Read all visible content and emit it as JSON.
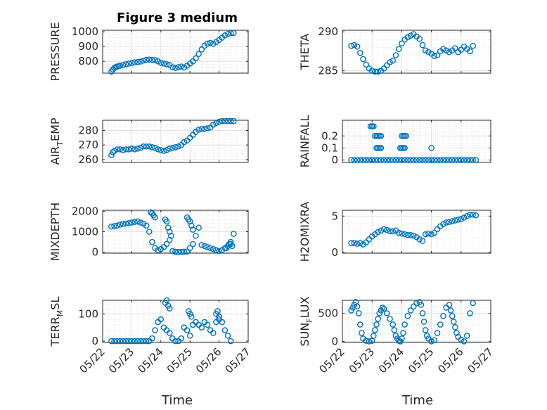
{
  "figure": {
    "title": "Figure 3 medium",
    "xlabel": "Time",
    "marker_color": "#0072BD"
  },
  "chart_data": [
    {
      "type": "scatter",
      "ylabel": "PRESSURE",
      "title": "Figure 3 medium",
      "xlim": [
        "05/22",
        "05/27"
      ],
      "ylim": [
        720,
        1010
      ],
      "yticks": [
        800,
        900,
        1000
      ],
      "xticks": [
        "05/22",
        "05/23",
        "05/24",
        "05/25",
        "05/26",
        "05/27"
      ],
      "grid": true,
      "x": [
        0.3,
        0.35,
        0.4,
        0.45,
        0.5,
        0.55,
        0.6,
        0.7,
        0.8,
        0.9,
        1.0,
        1.1,
        1.2,
        1.3,
        1.4,
        1.5,
        1.6,
        1.7,
        1.8,
        1.9,
        2.0,
        2.1,
        2.2,
        2.3,
        2.4,
        2.5,
        2.6,
        2.7,
        2.8,
        2.9,
        3.0,
        3.1,
        3.2,
        3.3,
        3.4,
        3.5,
        3.6,
        3.7,
        3.8,
        3.9,
        4.0,
        4.1,
        4.2,
        4.3,
        4.4,
        4.5
      ],
      "y": [
        730,
        745,
        755,
        760,
        765,
        768,
        770,
        775,
        780,
        785,
        790,
        793,
        795,
        798,
        805,
        810,
        812,
        810,
        808,
        800,
        790,
        785,
        780,
        775,
        760,
        755,
        760,
        765,
        758,
        770,
        785,
        800,
        820,
        850,
        880,
        905,
        920,
        925,
        918,
        930,
        945,
        960,
        975,
        985,
        990,
        992
      ]
    },
    {
      "type": "scatter",
      "ylabel": "THETA",
      "xlim": [
        "05/22",
        "05/27"
      ],
      "ylim": [
        284.7,
        290.2
      ],
      "yticks": [
        285,
        290
      ],
      "grid": true,
      "x": [
        0.3,
        0.4,
        0.5,
        0.6,
        0.7,
        0.8,
        0.9,
        1.0,
        1.1,
        1.2,
        1.3,
        1.4,
        1.5,
        1.6,
        1.7,
        1.8,
        1.9,
        2.0,
        2.1,
        2.2,
        2.3,
        2.4,
        2.5,
        2.6,
        2.7,
        2.8,
        2.9,
        3.0,
        3.1,
        3.2,
        3.3,
        3.4,
        3.5,
        3.6,
        3.7,
        3.8,
        3.9,
        4.0,
        4.1,
        4.2,
        4.3,
        4.4
      ],
      "y": [
        288.2,
        288.3,
        288.1,
        287.3,
        286.5,
        285.8,
        285.3,
        285.0,
        284.9,
        284.9,
        285.0,
        285.3,
        285.7,
        286.1,
        286.3,
        287.0,
        287.8,
        288.5,
        289.0,
        289.3,
        289.5,
        289.7,
        289.4,
        289.1,
        288.3,
        287.6,
        287.4,
        287.2,
        286.9,
        287.0,
        287.5,
        287.8,
        287.6,
        287.4,
        287.6,
        287.9,
        287.4,
        287.7,
        288.1,
        287.8,
        287.5,
        288.2
      ]
    },
    {
      "type": "scatter",
      "ylabel": "AIR_TEMP",
      "ylabel_parts": [
        "AIR",
        "T",
        "EMP"
      ],
      "xlim": [
        "05/22",
        "05/27"
      ],
      "ylim": [
        258,
        287
      ],
      "yticks": [
        260,
        270,
        280
      ],
      "grid": true,
      "x": [
        0.3,
        0.35,
        0.4,
        0.5,
        0.6,
        0.7,
        0.8,
        0.9,
        1.0,
        1.1,
        1.2,
        1.3,
        1.4,
        1.5,
        1.6,
        1.7,
        1.8,
        1.9,
        2.0,
        2.1,
        2.2,
        2.3,
        2.4,
        2.5,
        2.6,
        2.7,
        2.8,
        2.9,
        3.0,
        3.1,
        3.2,
        3.3,
        3.4,
        3.5,
        3.6,
        3.7,
        3.8,
        3.9,
        4.0,
        4.1,
        4.2,
        4.3,
        4.4,
        4.5
      ],
      "y": [
        263,
        265,
        266,
        267,
        267,
        266.5,
        267,
        267,
        267.5,
        267,
        267.5,
        268,
        269,
        269,
        269,
        268.5,
        268,
        267,
        266.5,
        266,
        266.5,
        267.5,
        268,
        268.5,
        269,
        270,
        272,
        273,
        275,
        277,
        279,
        280.5,
        281,
        281,
        281.5,
        282,
        284,
        285,
        286,
        286.5,
        286.5,
        286.5,
        286.5,
        286.5
      ]
    },
    {
      "type": "scatter",
      "ylabel": "RAINFALL",
      "xlim": [
        "05/22",
        "05/27"
      ],
      "ylim": [
        -0.02,
        0.33
      ],
      "yticks": [
        0,
        0.1,
        0.2
      ],
      "ytick_labels": [
        "0",
        "0.1",
        "0.2"
      ],
      "grid": true,
      "x": [
        0.3,
        0.4,
        0.5,
        0.6,
        0.7,
        0.8,
        0.9,
        1.0,
        1.1,
        1.2,
        1.3,
        1.4,
        1.5,
        1.6,
        1.7,
        1.8,
        1.9,
        2.0,
        2.1,
        2.2,
        2.3,
        2.4,
        2.5,
        2.6,
        2.7,
        2.8,
        2.9,
        3.0,
        3.1,
        3.2,
        3.3,
        3.4,
        3.5,
        3.6,
        3.7,
        3.8,
        3.9,
        4.0,
        4.1,
        4.2,
        4.3,
        4.4,
        4.5,
        0.95,
        1.0,
        1.05,
        1.1,
        1.15,
        1.2,
        1.25,
        1.3,
        1.15,
        1.2,
        1.25,
        1.3,
        1.95,
        2.0,
        2.05,
        2.1,
        2.15,
        2.0,
        2.05,
        2.1,
        3.0
      ],
      "y": [
        0,
        0,
        0,
        0,
        0,
        0,
        0,
        0,
        0,
        0,
        0,
        0,
        0,
        0,
        0,
        0,
        0,
        0,
        0,
        0,
        0,
        0,
        0,
        0,
        0,
        0,
        0,
        0,
        0,
        0,
        0,
        0,
        0,
        0,
        0,
        0,
        0,
        0,
        0,
        0,
        0,
        0,
        0,
        0.28,
        0.28,
        0.28,
        0.2,
        0.2,
        0.2,
        0.2,
        0.2,
        0.1,
        0.1,
        0.1,
        0.1,
        0.1,
        0.2,
        0.2,
        0.2,
        0.2,
        0.1,
        0.1,
        0.1,
        0.1
      ]
    },
    {
      "type": "scatter",
      "ylabel": "MIXDEPTH",
      "xlim": [
        "05/22",
        "05/27"
      ],
      "ylim": [
        -50,
        2050
      ],
      "yticks": [
        0,
        1000,
        2000
      ],
      "grid": true,
      "x": [
        0.3,
        0.4,
        0.5,
        0.6,
        0.7,
        0.8,
        0.9,
        1.0,
        1.1,
        1.2,
        1.3,
        1.4,
        1.5,
        1.6,
        1.7,
        1.8,
        1.9,
        2.0,
        2.1,
        2.2,
        2.3,
        2.4,
        2.5,
        2.6,
        2.7,
        2.8,
        2.9,
        3.0,
        3.1,
        3.2,
        3.3,
        3.4,
        3.5,
        3.6,
        3.7,
        3.8,
        3.9,
        4.0,
        4.1,
        4.2,
        4.3,
        4.4,
        4.5,
        1.65,
        1.7,
        1.75,
        1.8,
        2.15,
        2.2,
        2.25,
        2.3,
        2.35,
        2.9,
        2.95,
        3.0,
        3.05,
        3.1,
        4.25,
        4.3,
        4.35,
        4.4,
        4.45
      ],
      "y": [
        1250,
        1280,
        1300,
        1350,
        1380,
        1400,
        1420,
        1450,
        1480,
        1500,
        1450,
        1400,
        1300,
        1000,
        500,
        200,
        100,
        150,
        250,
        400,
        600,
        50,
        20,
        10,
        15,
        20,
        30,
        200,
        400,
        800,
        1200,
        350,
        300,
        250,
        200,
        150,
        100,
        50,
        100,
        200,
        300,
        400,
        900,
        1950,
        1900,
        1800,
        1700,
        1600,
        1500,
        1200,
        1000,
        800,
        1700,
        1600,
        1500,
        1300,
        1100,
        200,
        300,
        400,
        500,
        300
      ]
    },
    {
      "type": "scatter",
      "ylabel": "H2OMIXRA",
      "xlim": [
        "05/22",
        "05/27"
      ],
      "ylim": [
        -0.1,
        5.8
      ],
      "yticks": [
        0,
        5
      ],
      "grid": true,
      "x": [
        0.3,
        0.4,
        0.5,
        0.6,
        0.7,
        0.8,
        0.9,
        1.0,
        1.1,
        1.2,
        1.3,
        1.4,
        1.5,
        1.6,
        1.7,
        1.8,
        1.9,
        2.0,
        2.1,
        2.2,
        2.3,
        2.4,
        2.5,
        2.6,
        2.7,
        2.8,
        2.9,
        3.0,
        3.1,
        3.2,
        3.3,
        3.4,
        3.5,
        3.6,
        3.7,
        3.8,
        3.9,
        4.0,
        4.1,
        4.2,
        4.3,
        4.4,
        4.5
      ],
      "y": [
        1.3,
        1.3,
        1.2,
        1.3,
        1.1,
        1.4,
        1.8,
        2.2,
        2.5,
        2.8,
        3.0,
        3.2,
        3.1,
        2.9,
        2.9,
        3.0,
        2.7,
        2.6,
        2.5,
        2.4,
        2.4,
        2.3,
        2.1,
        1.8,
        1.6,
        2.5,
        2.6,
        2.5,
        2.7,
        3.2,
        3.6,
        3.9,
        4.1,
        4.2,
        4.3,
        4.4,
        4.5,
        4.6,
        4.8,
        5.0,
        5.2,
        5.2,
        5.1
      ]
    },
    {
      "type": "scatter",
      "ylabel": "TERR_MSL",
      "ylabel_parts": [
        "TERR",
        "M",
        "SL"
      ],
      "xlim": [
        "05/22",
        "05/27"
      ],
      "ylim": [
        -5,
        150
      ],
      "yticks": [
        0,
        100
      ],
      "grid": true,
      "x": [
        0.3,
        0.4,
        0.5,
        0.6,
        0.7,
        0.8,
        0.9,
        1.0,
        1.1,
        1.2,
        1.3,
        1.4,
        1.5,
        1.6,
        1.7,
        1.8,
        1.9,
        2.0,
        2.1,
        2.2,
        2.3,
        2.4,
        2.5,
        2.6,
        2.7,
        2.8,
        2.9,
        3.0,
        3.1,
        3.2,
        3.3,
        3.4,
        3.5,
        3.6,
        3.7,
        3.8,
        3.9,
        4.0,
        4.1,
        4.2,
        4.3,
        4.4,
        2.15,
        2.2,
        2.25,
        2.3,
        2.95,
        3.0,
        3.05,
        3.9,
        3.95,
        4.0
      ],
      "y": [
        0,
        0,
        0,
        0,
        0,
        0,
        0,
        0,
        0,
        0,
        0,
        0,
        0,
        0,
        10,
        40,
        70,
        80,
        50,
        40,
        30,
        10,
        0,
        0,
        10,
        50,
        40,
        20,
        60,
        70,
        60,
        50,
        70,
        60,
        40,
        30,
        70,
        80,
        70,
        40,
        20,
        0,
        140,
        150,
        130,
        120,
        110,
        100,
        90,
        100,
        110,
        90
      ]
    },
    {
      "type": "scatter",
      "ylabel": "SUN_FLUX",
      "ylabel_parts": [
        "SUN",
        "F",
        "LUX"
      ],
      "xlim": [
        "05/22",
        "05/27"
      ],
      "ylim": [
        -20,
        730
      ],
      "yticks": [
        0,
        500
      ],
      "grid": true,
      "x": [
        0.3,
        0.35,
        0.4,
        0.45,
        0.5,
        0.55,
        0.6,
        0.65,
        0.7,
        0.8,
        0.9,
        1.0,
        1.05,
        1.1,
        1.15,
        1.2,
        1.25,
        1.3,
        1.35,
        1.4,
        1.5,
        1.6,
        1.7,
        1.75,
        1.8,
        1.85,
        1.9,
        1.95,
        2.0,
        2.05,
        2.1,
        2.2,
        2.3,
        2.4,
        2.5,
        2.6,
        2.65,
        2.7,
        2.75,
        2.8,
        2.85,
        2.9,
        3.0,
        3.1,
        3.2,
        3.3,
        3.4,
        3.5,
        3.6,
        3.65,
        3.7,
        3.75,
        3.8,
        3.85,
        3.9,
        4.0,
        4.1,
        4.2,
        4.3,
        4.4
      ],
      "y": [
        550,
        600,
        650,
        700,
        620,
        500,
        300,
        150,
        50,
        10,
        0,
        10,
        100,
        200,
        300,
        400,
        500,
        550,
        600,
        580,
        500,
        400,
        300,
        200,
        100,
        50,
        10,
        0,
        50,
        150,
        300,
        450,
        550,
        620,
        680,
        700,
        650,
        500,
        350,
        200,
        100,
        50,
        0,
        20,
        150,
        300,
        450,
        600,
        650,
        550,
        450,
        350,
        250,
        150,
        80,
        30,
        0,
        100,
        500,
        680
      ]
    }
  ]
}
